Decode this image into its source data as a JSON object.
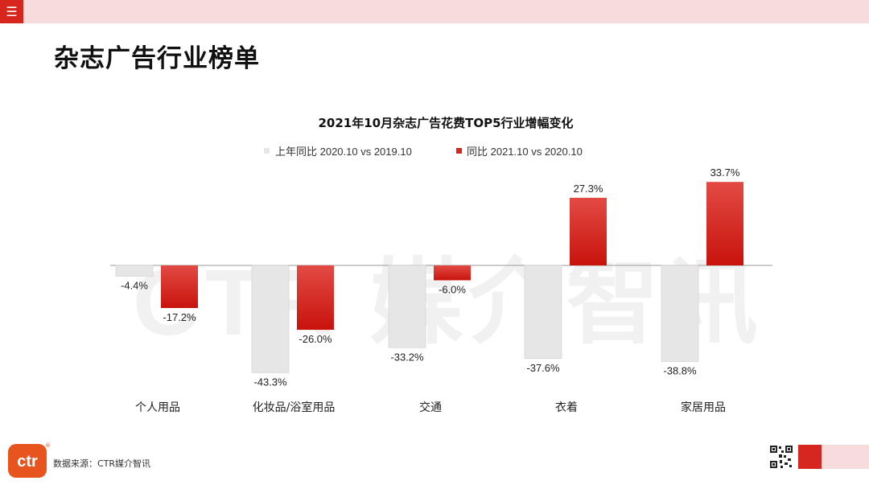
{
  "header": {
    "menu_icon": "hamburger-menu-icon",
    "page_title": "杂志广告行业榜单"
  },
  "watermark": "CTR 媒介智讯",
  "chart_data": {
    "type": "bar",
    "title": "2021年10月杂志广告花费TOP5行业增幅变化",
    "categories": [
      "个人用品",
      "化妆品/浴室用品",
      "交通",
      "衣着",
      "家居用品"
    ],
    "series": [
      {
        "name": "上年同比 2020.10 vs 2019.10",
        "color": "#e6e6e6",
        "values": [
          -4.4,
          -43.3,
          -33.2,
          -37.6,
          -38.8
        ],
        "labels": [
          "-4.4%",
          "-43.3%",
          "-33.2%",
          "-37.6%",
          "-38.8%"
        ]
      },
      {
        "name": "同比 2021.10 vs 2020.10",
        "color": "#d7261e",
        "values": [
          -17.2,
          -26.0,
          -6.0,
          27.3,
          33.7
        ],
        "labels": [
          "-17.2%",
          "-26.0%",
          "-6.0%",
          "27.3%",
          "33.7%"
        ]
      }
    ],
    "legend_position": "top",
    "xlabel": "",
    "ylabel": "",
    "grid": false
  },
  "footer": {
    "source": "数据来源：CTR媒介智讯",
    "logo_text": "ctr",
    "logo_mark": "®"
  },
  "colors": {
    "brand_red": "#d7261e",
    "pink_band": "#f8dcdd",
    "gray_bar": "#e6e6e6"
  }
}
